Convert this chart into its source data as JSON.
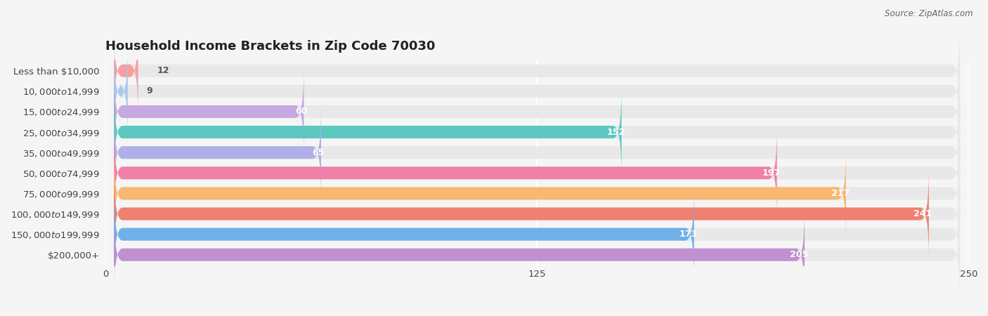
{
  "title": "Household Income Brackets in Zip Code 70030",
  "source": "Source: ZipAtlas.com",
  "categories": [
    "Less than $10,000",
    "$10,000 to $14,999",
    "$15,000 to $24,999",
    "$25,000 to $34,999",
    "$35,000 to $49,999",
    "$50,000 to $74,999",
    "$75,000 to $99,999",
    "$100,000 to $149,999",
    "$150,000 to $199,999",
    "$200,000+"
  ],
  "values": [
    12,
    9,
    60,
    152,
    65,
    197,
    217,
    241,
    173,
    205
  ],
  "colors": [
    "#F4A0A0",
    "#A8C8F0",
    "#C8A8E0",
    "#5CC8C0",
    "#B0B0E8",
    "#F080A8",
    "#F8B870",
    "#F08070",
    "#70B0E8",
    "#C090D0"
  ],
  "xlim": [
    0,
    250
  ],
  "xticks": [
    0,
    125,
    250
  ],
  "background_color": "#f5f5f5",
  "bar_bg_color": "#e8e8e8",
  "title_fontsize": 13,
  "label_fontsize": 9.5,
  "value_fontsize": 9
}
